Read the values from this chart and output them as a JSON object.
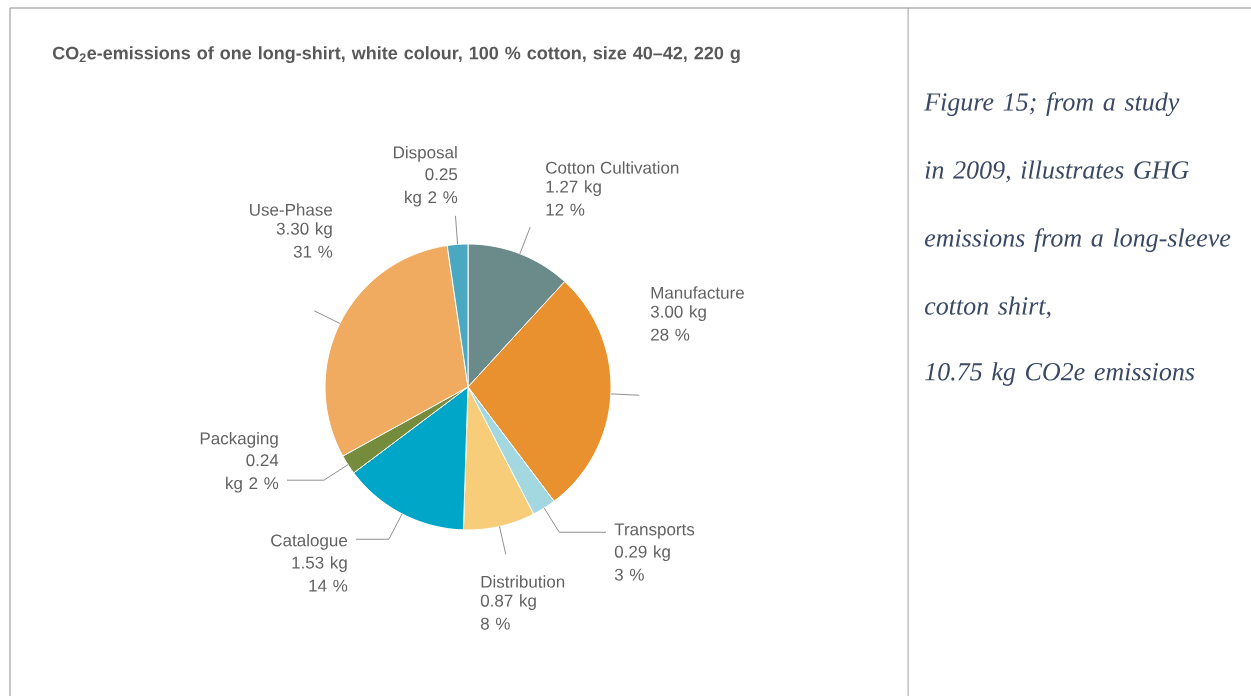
{
  "chart_data": {
    "type": "pie",
    "title": "CO$_{2}$e-emissions of one long-shirt, white colour, 100 % cotton, size 40–42, 220 g",
    "categories": [
      "Cotton Cultivation",
      "Manufacture",
      "Transports",
      "Distribution",
      "Catalogue",
      "Packaging",
      "Use-Phase",
      "Disposal"
    ],
    "values": [
      1.27,
      3.0,
      0.29,
      0.87,
      1.53,
      0.24,
      3.3,
      0.25
    ],
    "value_labels": [
      "1.27 kg 12 %",
      "3.00 kg 28 %",
      "0.29 kg 3 %",
      "0.87 kg 8 %",
      "1.53 kg 14 %",
      "0.24 kg 2 %",
      "3.30 kg 31 %",
      "0.25 kg 2 %"
    ],
    "colors": [
      "#6b8a8a",
      "#e8912e",
      "#a3d8e0",
      "#f7cd7a",
      "#00a6c8",
      "#758c3c",
      "#f0ab60",
      "#4aa8c0"
    ],
    "annotations": [
      "Figure 15; from a study in 2009, illustrates GHG emissions from a long-sleeve cotton shirt,",
      "10.75 kg CO2e emissions"
    ]
  }
}
